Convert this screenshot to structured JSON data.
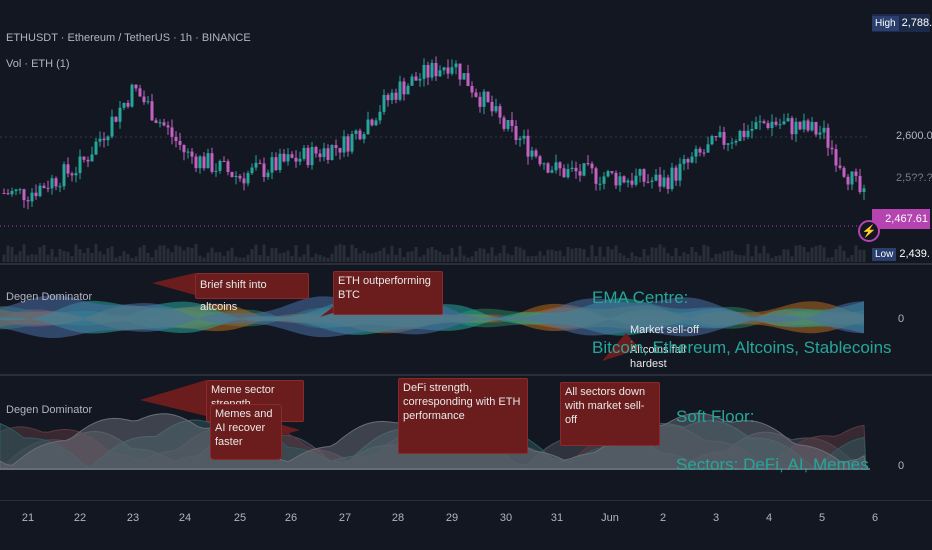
{
  "header": {
    "symbol_title": "ETHUSDT · Ethereum / TetherUS · 1h · BINANCE",
    "volume_label": "Vol · ETH (1)"
  },
  "price_axis": {
    "high_tag_label": "High",
    "high_tag_value": "2,788.00",
    "level_2600": "2,600.00",
    "last_price": "2,467.61",
    "low_tag_label": "Low",
    "low_tag_value": "2,439.10",
    "partial_top": "2,5??.??",
    "partial_mid": "2,4??.??"
  },
  "indicator1": {
    "title": "Degen Dominator",
    "zero_label": "0",
    "callouts": [
      "Brief shift into altcoins",
      "ETH outperforming BTC",
      "Market sell-off",
      "Altcoins fall hardest"
    ],
    "heading": "EMA Centre:",
    "subheading": "Bitcoin, Ethereum, Altcoins, Stablecoins"
  },
  "indicator2": {
    "title": "Degen Dominator",
    "zero_label": "0",
    "callouts": [
      "Meme sector strength",
      "Memes and AI recover faster",
      "DeFi strength, corresponding with ETH performance",
      "All sectors down with market sell-off"
    ],
    "heading": "Soft Floor:",
    "subheading": "Sectors: DeFi, AI, Memes"
  },
  "time_axis": [
    "21",
    "22",
    "23",
    "24",
    "25",
    "26",
    "27",
    "28",
    "29",
    "30",
    "31",
    "Jun",
    "2",
    "3",
    "4",
    "5",
    "6"
  ],
  "colors": {
    "bg": "#131722",
    "up": "#26a69a",
    "down": "#c261c0",
    "accent_teal": "#26a69a",
    "callout_bg": "#6b1d1d",
    "high_tag": "#1c2a4a",
    "last_price_tag": "#b543b0"
  },
  "chart_data": {
    "type": "line",
    "title": "ETHUSDT · Ethereum / TetherUS · 1h · BINANCE",
    "x": [
      "21",
      "22",
      "23",
      "24",
      "25",
      "26",
      "27",
      "28",
      "29",
      "30",
      "31",
      "Jun",
      "2",
      "3",
      "4",
      "5",
      "6"
    ],
    "series": [
      {
        "name": "ETHUSDT",
        "values": [
          2510,
          2560,
          2700,
          2580,
          2540,
          2570,
          2600,
          2700,
          2750,
          2630,
          2550,
          2540,
          2530,
          2600,
          2640,
          2620,
          2467
        ]
      }
    ],
    "ylim": [
      2439.1,
      2788
    ]
  }
}
